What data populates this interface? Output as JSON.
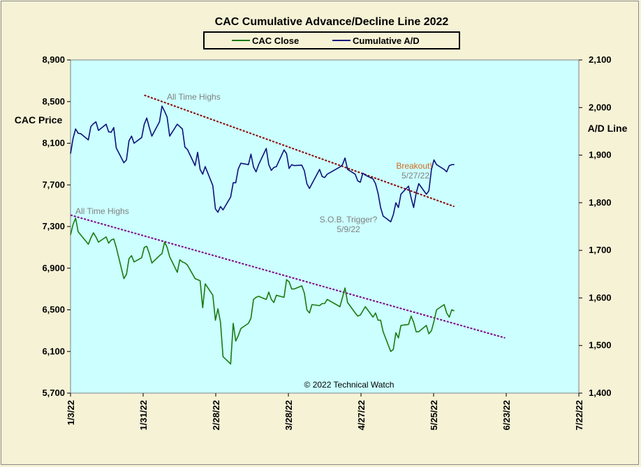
{
  "colors": {
    "background": "#f6f2d6",
    "plot_bg": "#ccffff",
    "cac_close": "#1a7a12",
    "ad_line": "#0c137a",
    "trend_upper": "#8b0000",
    "trend_lower": "#800080",
    "anno_gray": "#808080",
    "anno_orange": "#d2691e"
  },
  "chart_data": {
    "type": "line",
    "title": "CAC Cumulative  Advance/Decline  Line  2022",
    "legend": [
      "CAC Close",
      "Cumulative A/D"
    ],
    "legend_position": "top-center",
    "ylabel_left": "CAC Price",
    "ylabel_right": "A/D Line",
    "ylim_left": [
      5700,
      8900
    ],
    "ylim_right": [
      1400,
      2100
    ],
    "y_ticks_left": [
      "5,700",
      "6,100",
      "6,500",
      "6,900",
      "7,300",
      "7,700",
      "8,100",
      "8,500",
      "8,900"
    ],
    "y_ticks_right": [
      "1,400",
      "1,500",
      "1,600",
      "1,700",
      "1,800",
      "1,900",
      "2,000",
      "2,100"
    ],
    "x_range": [
      "2022-01-03",
      "2022-07-22"
    ],
    "x_ticks": [
      "1/3/22",
      "1/31/22",
      "2/28/22",
      "3/28/22",
      "4/27/22",
      "5/25/22",
      "6/23/22",
      "7/22/22"
    ],
    "series": [
      {
        "name": "CAC Close",
        "axis": "left",
        "points": [
          [
            "2022-01-03",
            7220
          ],
          [
            "2022-01-04",
            7320
          ],
          [
            "2022-01-05",
            7380
          ],
          [
            "2022-01-06",
            7250
          ],
          [
            "2022-01-07",
            7220
          ],
          [
            "2022-01-10",
            7130
          ],
          [
            "2022-01-11",
            7190
          ],
          [
            "2022-01-12",
            7240
          ],
          [
            "2022-01-13",
            7200
          ],
          [
            "2022-01-14",
            7150
          ],
          [
            "2022-01-17",
            7200
          ],
          [
            "2022-01-18",
            7140
          ],
          [
            "2022-01-19",
            7170
          ],
          [
            "2022-01-20",
            7180
          ],
          [
            "2022-01-21",
            7100
          ],
          [
            "2022-01-24",
            6800
          ],
          [
            "2022-01-25",
            6840
          ],
          [
            "2022-01-26",
            6990
          ],
          [
            "2022-01-27",
            7020
          ],
          [
            "2022-01-28",
            6960
          ],
          [
            "2022-01-31",
            7000
          ],
          [
            "2022-02-01",
            7100
          ],
          [
            "2022-02-02",
            7110
          ],
          [
            "2022-02-03",
            7040
          ],
          [
            "2022-02-04",
            6950
          ],
          [
            "2022-02-07",
            7020
          ],
          [
            "2022-02-08",
            7040
          ],
          [
            "2022-02-09",
            7150
          ],
          [
            "2022-02-10",
            7100
          ],
          [
            "2022-02-11",
            7010
          ],
          [
            "2022-02-14",
            6860
          ],
          [
            "2022-02-15",
            6980
          ],
          [
            "2022-02-16",
            6960
          ],
          [
            "2022-02-17",
            6950
          ],
          [
            "2022-02-18",
            6930
          ],
          [
            "2022-02-21",
            6800
          ],
          [
            "2022-02-22",
            6790
          ],
          [
            "2022-02-23",
            6780
          ],
          [
            "2022-02-24",
            6520
          ],
          [
            "2022-02-25",
            6750
          ],
          [
            "2022-02-28",
            6640
          ],
          [
            "2022-03-01",
            6400
          ],
          [
            "2022-03-02",
            6510
          ],
          [
            "2022-03-03",
            6380
          ],
          [
            "2022-03-04",
            6050
          ],
          [
            "2022-03-07",
            5980
          ],
          [
            "2022-03-08",
            6370
          ],
          [
            "2022-03-09",
            6200
          ],
          [
            "2022-03-10",
            6250
          ],
          [
            "2022-03-11",
            6320
          ],
          [
            "2022-03-14",
            6370
          ],
          [
            "2022-03-15",
            6420
          ],
          [
            "2022-03-16",
            6600
          ],
          [
            "2022-03-17",
            6620
          ],
          [
            "2022-03-18",
            6630
          ],
          [
            "2022-03-21",
            6600
          ],
          [
            "2022-03-22",
            6670
          ],
          [
            "2022-03-23",
            6600
          ],
          [
            "2022-03-24",
            6570
          ],
          [
            "2022-03-25",
            6640
          ],
          [
            "2022-03-28",
            6620
          ],
          [
            "2022-03-29",
            6790
          ],
          [
            "2022-03-30",
            6770
          ],
          [
            "2022-03-31",
            6700
          ],
          [
            "2022-04-01",
            6700
          ],
          [
            "2022-04-04",
            6730
          ],
          [
            "2022-04-05",
            6660
          ],
          [
            "2022-04-06",
            6500
          ],
          [
            "2022-04-07",
            6470
          ],
          [
            "2022-04-08",
            6550
          ],
          [
            "2022-04-11",
            6540
          ],
          [
            "2022-04-12",
            6560
          ],
          [
            "2022-04-13",
            6560
          ],
          [
            "2022-04-14",
            6600
          ],
          [
            "2022-04-19",
            6530
          ],
          [
            "2022-04-20",
            6620
          ],
          [
            "2022-04-21",
            6710
          ],
          [
            "2022-04-22",
            6570
          ],
          [
            "2022-04-25",
            6470
          ],
          [
            "2022-04-26",
            6440
          ],
          [
            "2022-04-27",
            6450
          ],
          [
            "2022-04-28",
            6490
          ],
          [
            "2022-04-29",
            6530
          ],
          [
            "2022-05-02",
            6430
          ],
          [
            "2022-05-03",
            6470
          ],
          [
            "2022-05-04",
            6400
          ],
          [
            "2022-05-05",
            6400
          ],
          [
            "2022-05-06",
            6290
          ],
          [
            "2022-05-09",
            6100
          ],
          [
            "2022-05-10",
            6120
          ],
          [
            "2022-05-11",
            6280
          ],
          [
            "2022-05-12",
            6230
          ],
          [
            "2022-05-13",
            6350
          ],
          [
            "2022-05-16",
            6360
          ],
          [
            "2022-05-17",
            6440
          ],
          [
            "2022-05-18",
            6380
          ],
          [
            "2022-05-19",
            6290
          ],
          [
            "2022-05-20",
            6290
          ],
          [
            "2022-05-23",
            6350
          ],
          [
            "2022-05-24",
            6270
          ],
          [
            "2022-05-25",
            6300
          ],
          [
            "2022-05-26",
            6390
          ],
          [
            "2022-05-27",
            6500
          ],
          [
            "2022-05-30",
            6550
          ],
          [
            "2022-05-31",
            6470
          ],
          [
            "2022-06-01",
            6430
          ],
          [
            "2022-06-02",
            6500
          ],
          [
            "2022-06-03",
            6490
          ]
        ]
      },
      {
        "name": "Cumulative A/D",
        "axis": "right",
        "points": [
          [
            "2022-01-03",
            1903
          ],
          [
            "2022-01-04",
            1935
          ],
          [
            "2022-01-05",
            1955
          ],
          [
            "2022-01-06",
            1946
          ],
          [
            "2022-01-07",
            1945
          ],
          [
            "2022-01-10",
            1932
          ],
          [
            "2022-01-11",
            1960
          ],
          [
            "2022-01-12",
            1966
          ],
          [
            "2022-01-13",
            1970
          ],
          [
            "2022-01-14",
            1952
          ],
          [
            "2022-01-17",
            1965
          ],
          [
            "2022-01-18",
            1949
          ],
          [
            "2022-01-19",
            1948
          ],
          [
            "2022-01-20",
            1958
          ],
          [
            "2022-01-21",
            1915
          ],
          [
            "2022-01-24",
            1884
          ],
          [
            "2022-01-25",
            1890
          ],
          [
            "2022-01-26",
            1930
          ],
          [
            "2022-01-27",
            1940
          ],
          [
            "2022-01-28",
            1925
          ],
          [
            "2022-01-31",
            1937
          ],
          [
            "2022-02-01",
            1965
          ],
          [
            "2022-02-02",
            1978
          ],
          [
            "2022-02-03",
            1958
          ],
          [
            "2022-02-04",
            1940
          ],
          [
            "2022-02-07",
            1970
          ],
          [
            "2022-02-08",
            2003
          ],
          [
            "2022-02-09",
            1992
          ],
          [
            "2022-02-10",
            1980
          ],
          [
            "2022-02-11",
            1940
          ],
          [
            "2022-02-14",
            1965
          ],
          [
            "2022-02-15",
            1960
          ],
          [
            "2022-02-16",
            1955
          ],
          [
            "2022-02-17",
            1917
          ],
          [
            "2022-02-18",
            1912
          ],
          [
            "2022-02-21",
            1878
          ],
          [
            "2022-02-22",
            1906
          ],
          [
            "2022-02-23",
            1870
          ],
          [
            "2022-02-24",
            1860
          ],
          [
            "2022-02-25",
            1876
          ],
          [
            "2022-02-28",
            1836
          ],
          [
            "2022-03-01",
            1787
          ],
          [
            "2022-03-02",
            1780
          ],
          [
            "2022-03-03",
            1792
          ],
          [
            "2022-03-04",
            1785
          ],
          [
            "2022-03-07",
            1812
          ],
          [
            "2022-03-08",
            1842
          ],
          [
            "2022-03-09",
            1842
          ],
          [
            "2022-03-10",
            1871
          ],
          [
            "2022-03-11",
            1883
          ],
          [
            "2022-03-14",
            1880
          ],
          [
            "2022-03-15",
            1902
          ],
          [
            "2022-03-16",
            1875
          ],
          [
            "2022-03-17",
            1865
          ],
          [
            "2022-03-18",
            1880
          ],
          [
            "2022-03-21",
            1914
          ],
          [
            "2022-03-22",
            1880
          ],
          [
            "2022-03-23",
            1868
          ],
          [
            "2022-03-24",
            1874
          ],
          [
            "2022-03-25",
            1876
          ],
          [
            "2022-03-28",
            1911
          ],
          [
            "2022-03-29",
            1903
          ],
          [
            "2022-03-30",
            1872
          ],
          [
            "2022-03-31",
            1880
          ],
          [
            "2022-04-01",
            1878
          ],
          [
            "2022-04-04",
            1879
          ],
          [
            "2022-04-05",
            1867
          ],
          [
            "2022-04-06",
            1840
          ],
          [
            "2022-04-07",
            1830
          ],
          [
            "2022-04-08",
            1840
          ],
          [
            "2022-04-11",
            1870
          ],
          [
            "2022-04-12",
            1855
          ],
          [
            "2022-04-13",
            1853
          ],
          [
            "2022-04-14",
            1860
          ],
          [
            "2022-04-19",
            1875
          ],
          [
            "2022-04-20",
            1880
          ],
          [
            "2022-04-21",
            1894
          ],
          [
            "2022-04-22",
            1870
          ],
          [
            "2022-04-25",
            1860
          ],
          [
            "2022-04-26",
            1846
          ],
          [
            "2022-04-27",
            1843
          ],
          [
            "2022-04-28",
            1862
          ],
          [
            "2022-04-29",
            1858
          ],
          [
            "2022-05-02",
            1850
          ],
          [
            "2022-05-03",
            1840
          ],
          [
            "2022-05-04",
            1820
          ],
          [
            "2022-05-05",
            1790
          ],
          [
            "2022-05-06",
            1772
          ],
          [
            "2022-05-09",
            1760
          ],
          [
            "2022-05-10",
            1775
          ],
          [
            "2022-05-11",
            1800
          ],
          [
            "2022-05-12",
            1790
          ],
          [
            "2022-05-13",
            1818
          ],
          [
            "2022-05-16",
            1835
          ],
          [
            "2022-05-17",
            1810
          ],
          [
            "2022-05-18",
            1790
          ],
          [
            "2022-05-19",
            1820
          ],
          [
            "2022-05-20",
            1840
          ],
          [
            "2022-05-23",
            1818
          ],
          [
            "2022-05-24",
            1825
          ],
          [
            "2022-05-25",
            1870
          ],
          [
            "2022-05-26",
            1890
          ],
          [
            "2022-05-27",
            1880
          ],
          [
            "2022-05-30",
            1870
          ],
          [
            "2022-05-31",
            1865
          ],
          [
            "2022-06-01",
            1878
          ],
          [
            "2022-06-02",
            1880
          ],
          [
            "2022-06-03",
            1880
          ]
        ]
      }
    ],
    "trendlines": [
      {
        "axis": "right",
        "from": [
          "2022-02-01",
          2026
        ],
        "to": [
          "2022-06-03",
          1792
        ],
        "color": "#8b0000"
      },
      {
        "axis": "left",
        "from": [
          "2022-01-03",
          7410
        ],
        "to": [
          "2022-06-23",
          6230
        ],
        "color": "#800080"
      }
    ],
    "annotations": [
      {
        "text": "All Time Highs",
        "color": "#808080"
      },
      {
        "text": "All Time Highs",
        "color": "#808080"
      },
      {
        "text": "Breakout!",
        "color": "#d2691e"
      },
      {
        "text": "5/27/22",
        "color": "#808080"
      },
      {
        "text": "S.O.B. Trigger?",
        "color": "#808080"
      },
      {
        "text": "5/9/22",
        "color": "#808080"
      }
    ],
    "copyright": "© 2022 Technical  Watch"
  }
}
